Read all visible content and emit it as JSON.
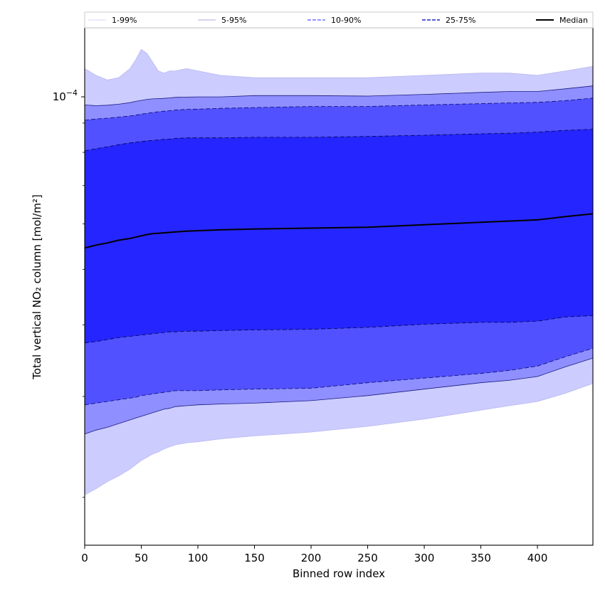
{
  "chart_data": {
    "type": "area",
    "xlabel": "Binned row index",
    "ylabel": "Total vertical NO₂ column [mol/m²]",
    "xlim": [
      0,
      449
    ],
    "ylim": [
      1.65e-05,
      0.000132
    ],
    "yscale": "log",
    "x_ticks": [
      0,
      50,
      100,
      150,
      200,
      250,
      300,
      350,
      400
    ],
    "x_tick_labels": [
      "0",
      "50",
      "100",
      "150",
      "200",
      "250",
      "300",
      "350",
      "400"
    ],
    "y_ticks": [
      0.0001
    ],
    "y_tick_labels": [
      "10⁻⁴"
    ],
    "y_tick_label_base": "10",
    "y_tick_label_exp": "−4",
    "legend_position": "top (horizontal strip above plot)",
    "grid": false,
    "x": [
      0,
      10,
      20,
      30,
      40,
      45,
      50,
      55,
      60,
      65,
      70,
      75,
      80,
      90,
      100,
      120,
      150,
      200,
      250,
      300,
      350,
      375,
      400,
      425,
      449
    ],
    "series": [
      {
        "name": "1-99%",
        "color": "#ccccff",
        "line": "#b8b8f0",
        "dash": "none",
        "lower": [
          2.02e-05,
          2.07e-05,
          2.13e-05,
          2.18e-05,
          2.24e-05,
          2.28e-05,
          2.32e-05,
          2.35e-05,
          2.38e-05,
          2.4e-05,
          2.43e-05,
          2.45e-05,
          2.47e-05,
          2.49e-05,
          2.5e-05,
          2.53e-05,
          2.56e-05,
          2.6e-05,
          2.66e-05,
          2.74e-05,
          2.84e-05,
          2.89e-05,
          2.94e-05,
          3.04e-05,
          3.16e-05
        ],
        "upper": [
          0.000112,
          0.000109,
          0.000107,
          0.000108,
          0.000112,
          0.000116,
          0.000121,
          0.000119,
          0.000115,
          0.000111,
          0.00011,
          0.000111,
          0.000111,
          0.000112,
          0.000111,
          0.000109,
          0.000108,
          0.000108,
          0.000108,
          0.000109,
          0.00011,
          0.00011,
          0.000109,
          0.000111,
          0.000113
        ]
      },
      {
        "name": "5-95%",
        "color": "#8f8fff",
        "line": "#1a1a80",
        "dash": "none",
        "lower": [
          2.58e-05,
          2.62e-05,
          2.65e-05,
          2.69e-05,
          2.73e-05,
          2.75e-05,
          2.77e-05,
          2.79e-05,
          2.81e-05,
          2.83e-05,
          2.85e-05,
          2.86e-05,
          2.88e-05,
          2.89e-05,
          2.9e-05,
          2.91e-05,
          2.92e-05,
          2.95e-05,
          3.01e-05,
          3.09e-05,
          3.17e-05,
          3.2e-05,
          3.25e-05,
          3.38e-05,
          3.5e-05
        ],
        "upper": [
          9.68e-05,
          9.65e-05,
          9.67e-05,
          9.71e-05,
          9.77e-05,
          9.82e-05,
          9.86e-05,
          9.9e-05,
          9.92e-05,
          9.93e-05,
          9.94e-05,
          9.96e-05,
          9.98e-05,
          9.99e-05,
          0.0001,
          0.0001,
          0.0001005,
          0.0001005,
          0.0001003,
          0.000101,
          0.0001018,
          0.0001022,
          0.0001022,
          0.0001033,
          0.0001045
        ]
      },
      {
        "name": "10-90%",
        "color": "#5151ff",
        "line": "#0a0a70",
        "dash": "6,3",
        "lower": [
          2.9e-05,
          2.92e-05,
          2.94e-05,
          2.96e-05,
          2.98e-05,
          2.99e-05,
          3.01e-05,
          3.02e-05,
          3.03e-05,
          3.04e-05,
          3.05e-05,
          3.06e-05,
          3.07e-05,
          3.07e-05,
          3.07e-05,
          3.08e-05,
          3.09e-05,
          3.1e-05,
          3.17e-05,
          3.23e-05,
          3.29e-05,
          3.33e-05,
          3.39e-05,
          3.52e-05,
          3.64e-05
        ],
        "upper": [
          9.1e-05,
          9.15e-05,
          9.18e-05,
          9.22e-05,
          9.26e-05,
          9.29e-05,
          9.33e-05,
          9.36e-05,
          9.39e-05,
          9.42e-05,
          9.44e-05,
          9.46e-05,
          9.48e-05,
          9.51e-05,
          9.52e-05,
          9.55e-05,
          9.58e-05,
          9.62e-05,
          9.62e-05,
          9.68e-05,
          9.73e-05,
          9.76e-05,
          9.78e-05,
          9.85e-05,
          9.95e-05
        ]
      },
      {
        "name": "25-75%",
        "color": "#2525ff",
        "line": "#000050",
        "dash": "6,3",
        "lower": [
          3.72e-05,
          3.74e-05,
          3.77e-05,
          3.8e-05,
          3.82e-05,
          3.83e-05,
          3.84e-05,
          3.85e-05,
          3.86e-05,
          3.87e-05,
          3.88e-05,
          3.89e-05,
          3.89e-05,
          3.9e-05,
          3.9e-05,
          3.91e-05,
          3.92e-05,
          3.93e-05,
          3.96e-05,
          4.01e-05,
          4.04e-05,
          4.04e-05,
          4.06e-05,
          4.13e-05,
          4.15e-05
        ],
        "upper": [
          8.05e-05,
          8.12e-05,
          8.18e-05,
          8.25e-05,
          8.31e-05,
          8.33e-05,
          8.36e-05,
          8.38e-05,
          8.39e-05,
          8.41e-05,
          8.43e-05,
          8.44e-05,
          8.46e-05,
          8.48e-05,
          8.48e-05,
          8.48e-05,
          8.5e-05,
          8.5e-05,
          8.53e-05,
          8.57e-05,
          8.62e-05,
          8.64e-05,
          8.68e-05,
          8.74e-05,
          8.78e-05
        ]
      },
      {
        "name": "Median",
        "color": "#000000",
        "line": "#000000",
        "dash": "none",
        "values": [
          5.45e-05,
          5.51e-05,
          5.56e-05,
          5.62e-05,
          5.66e-05,
          5.69e-05,
          5.72e-05,
          5.75e-05,
          5.77e-05,
          5.78e-05,
          5.79e-05,
          5.8e-05,
          5.81e-05,
          5.83e-05,
          5.84e-05,
          5.86e-05,
          5.88e-05,
          5.9e-05,
          5.92e-05,
          5.98e-05,
          6.04e-05,
          6.07e-05,
          6.1e-05,
          6.18e-05,
          6.25e-05
        ]
      }
    ]
  }
}
